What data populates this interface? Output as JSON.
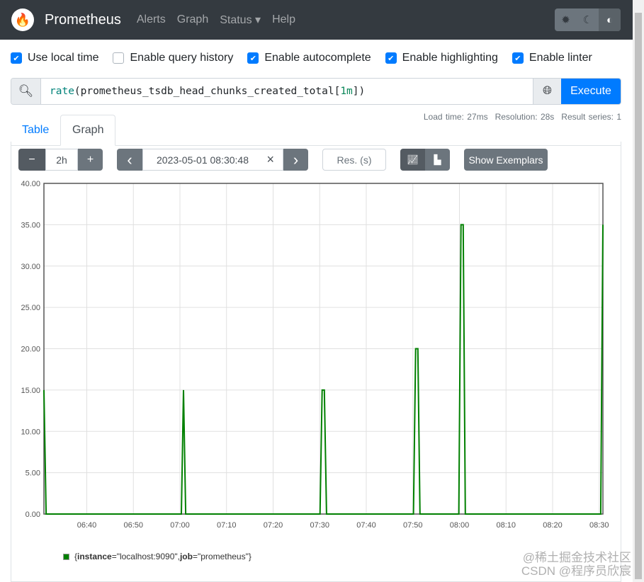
{
  "nav": {
    "brand": "Prometheus",
    "links": [
      "Alerts",
      "Graph",
      "Status ▾",
      "Help"
    ],
    "theme_icons": [
      "sun-icon",
      "moon-icon",
      "contrast-icon"
    ]
  },
  "options": [
    {
      "label": "Use local time",
      "checked": true
    },
    {
      "label": "Enable query history",
      "checked": false
    },
    {
      "label": "Enable autocomplete",
      "checked": true
    },
    {
      "label": "Enable highlighting",
      "checked": true
    },
    {
      "label": "Enable linter",
      "checked": true
    }
  ],
  "query": {
    "fn": "rate",
    "open": "(",
    "metric": "prometheus_tsdb_head_chunks_created_total",
    "range_open": "[",
    "range": "1m",
    "close": "])",
    "execute_label": "Execute"
  },
  "tabs": {
    "table": "Table",
    "graph": "Graph",
    "active": "Graph"
  },
  "stats": {
    "load": "Load time: 27ms",
    "resolution": "Resolution: 28s",
    "series": "Result series: 1"
  },
  "controls": {
    "minus": "−",
    "range": "2h",
    "plus": "+",
    "prev": "‹",
    "end_time": "2023-05-01 08:30:48",
    "clear": "×",
    "next": "›",
    "res_placeholder": "Res. (s)",
    "show_exemplars": "Show Exemplars",
    "stacked": false
  },
  "chart_data": {
    "type": "line",
    "xlim": [
      "06:30:48",
      "08:30:48"
    ],
    "ylim": [
      0,
      40
    ],
    "yticks": [
      "0.00",
      "5.00",
      "10.00",
      "15.00",
      "20.00",
      "25.00",
      "30.00",
      "35.00",
      "40.00"
    ],
    "xticks": [
      "06:40",
      "06:50",
      "07:00",
      "07:10",
      "07:20",
      "07:30",
      "07:40",
      "07:50",
      "08:00",
      "08:10",
      "08:20",
      "08:30"
    ],
    "grid": true,
    "series": [
      {
        "name": "{instance=\"localhost:9090\", job=\"prometheus\"}",
        "color": "#008000",
        "points": [
          [
            "06:30:48",
            15
          ],
          [
            "06:31:16",
            0
          ],
          [
            "07:00:18",
            0
          ],
          [
            "07:00:46",
            15
          ],
          [
            "07:01:14",
            0
          ],
          [
            "07:30:04",
            0
          ],
          [
            "07:30:32",
            15
          ],
          [
            "07:31:00",
            15
          ],
          [
            "07:31:28",
            0
          ],
          [
            "07:50:08",
            0
          ],
          [
            "07:50:36",
            20
          ],
          [
            "07:51:04",
            20
          ],
          [
            "07:51:32",
            0
          ],
          [
            "07:59:52",
            0
          ],
          [
            "08:00:20",
            35
          ],
          [
            "08:00:48",
            35
          ],
          [
            "08:01:16",
            0
          ],
          [
            "08:30:20",
            0
          ],
          [
            "08:30:48",
            35
          ]
        ]
      }
    ],
    "legend": "bottom-left"
  },
  "legend": {
    "open": "{",
    "k1": "instance",
    "v1": "=\"localhost:9090\", ",
    "k2": "job",
    "v2": "=\"prometheus\"}"
  },
  "watermark": {
    "line1": "@稀土掘金技术社区",
    "line2": "CSDN @程序员欣宸"
  }
}
